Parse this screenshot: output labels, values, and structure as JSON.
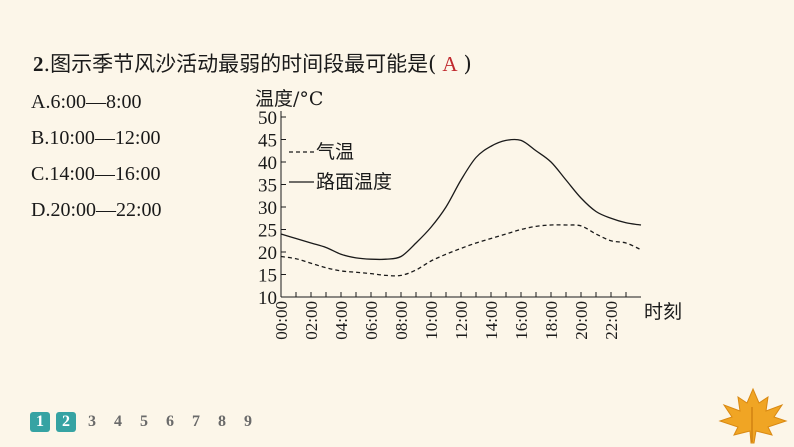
{
  "question": {
    "number": "2",
    "stem": ".图示季节风沙活动最弱的时间段最可能是(",
    "answer": "A",
    "close": ")"
  },
  "options": [
    {
      "label": "A.6:00—8:00"
    },
    {
      "label": "B.10:00—12:00"
    },
    {
      "label": "C.14:00—16:00"
    },
    {
      "label": "D.20:00—22:00"
    }
  ],
  "chart_data": {
    "type": "line",
    "ylabel": "温度/°C",
    "xlabel": "时刻",
    "ylim": [
      10,
      50
    ],
    "yticks": [
      10,
      15,
      20,
      25,
      30,
      35,
      40,
      45,
      50
    ],
    "xlim": [
      0,
      24
    ],
    "xtick_labels": [
      "00:00",
      "02:00",
      "04:00",
      "06:00",
      "08:00",
      "10:00",
      "12:00",
      "14:00",
      "16:00",
      "18:00",
      "20:00",
      "22:00"
    ],
    "x": [
      0,
      1,
      2,
      3,
      4,
      5,
      6,
      7,
      8,
      9,
      10,
      11,
      12,
      13,
      14,
      15,
      16,
      17,
      18,
      19,
      20,
      21,
      22,
      23,
      24
    ],
    "series": [
      {
        "name": "气温",
        "style": "dashed",
        "values": [
          19,
          18.5,
          17.5,
          16.5,
          15.8,
          15.5,
          15.2,
          14.8,
          14.8,
          16,
          18,
          19.5,
          20.8,
          22,
          23,
          24,
          25,
          25.7,
          26,
          26,
          25.8,
          24,
          22.5,
          22,
          20.5
        ]
      },
      {
        "name": "路面温度",
        "style": "solid",
        "values": [
          24,
          23,
          22,
          21,
          19.5,
          18.7,
          18.4,
          18.4,
          19,
          22,
          25.5,
          30,
          36,
          41,
          43.5,
          44.8,
          44.8,
          42.5,
          40,
          36,
          32,
          29,
          27.5,
          26.5,
          26
        ]
      }
    ],
    "legend": "top-left",
    "grid": false,
    "colors": {
      "axis": "#1a1a1a",
      "line": "#1a1a1a"
    }
  },
  "pager": {
    "pages": [
      "1",
      "2",
      "3",
      "4",
      "5",
      "6",
      "7",
      "8",
      "9"
    ],
    "active": [
      "1",
      "2"
    ]
  }
}
